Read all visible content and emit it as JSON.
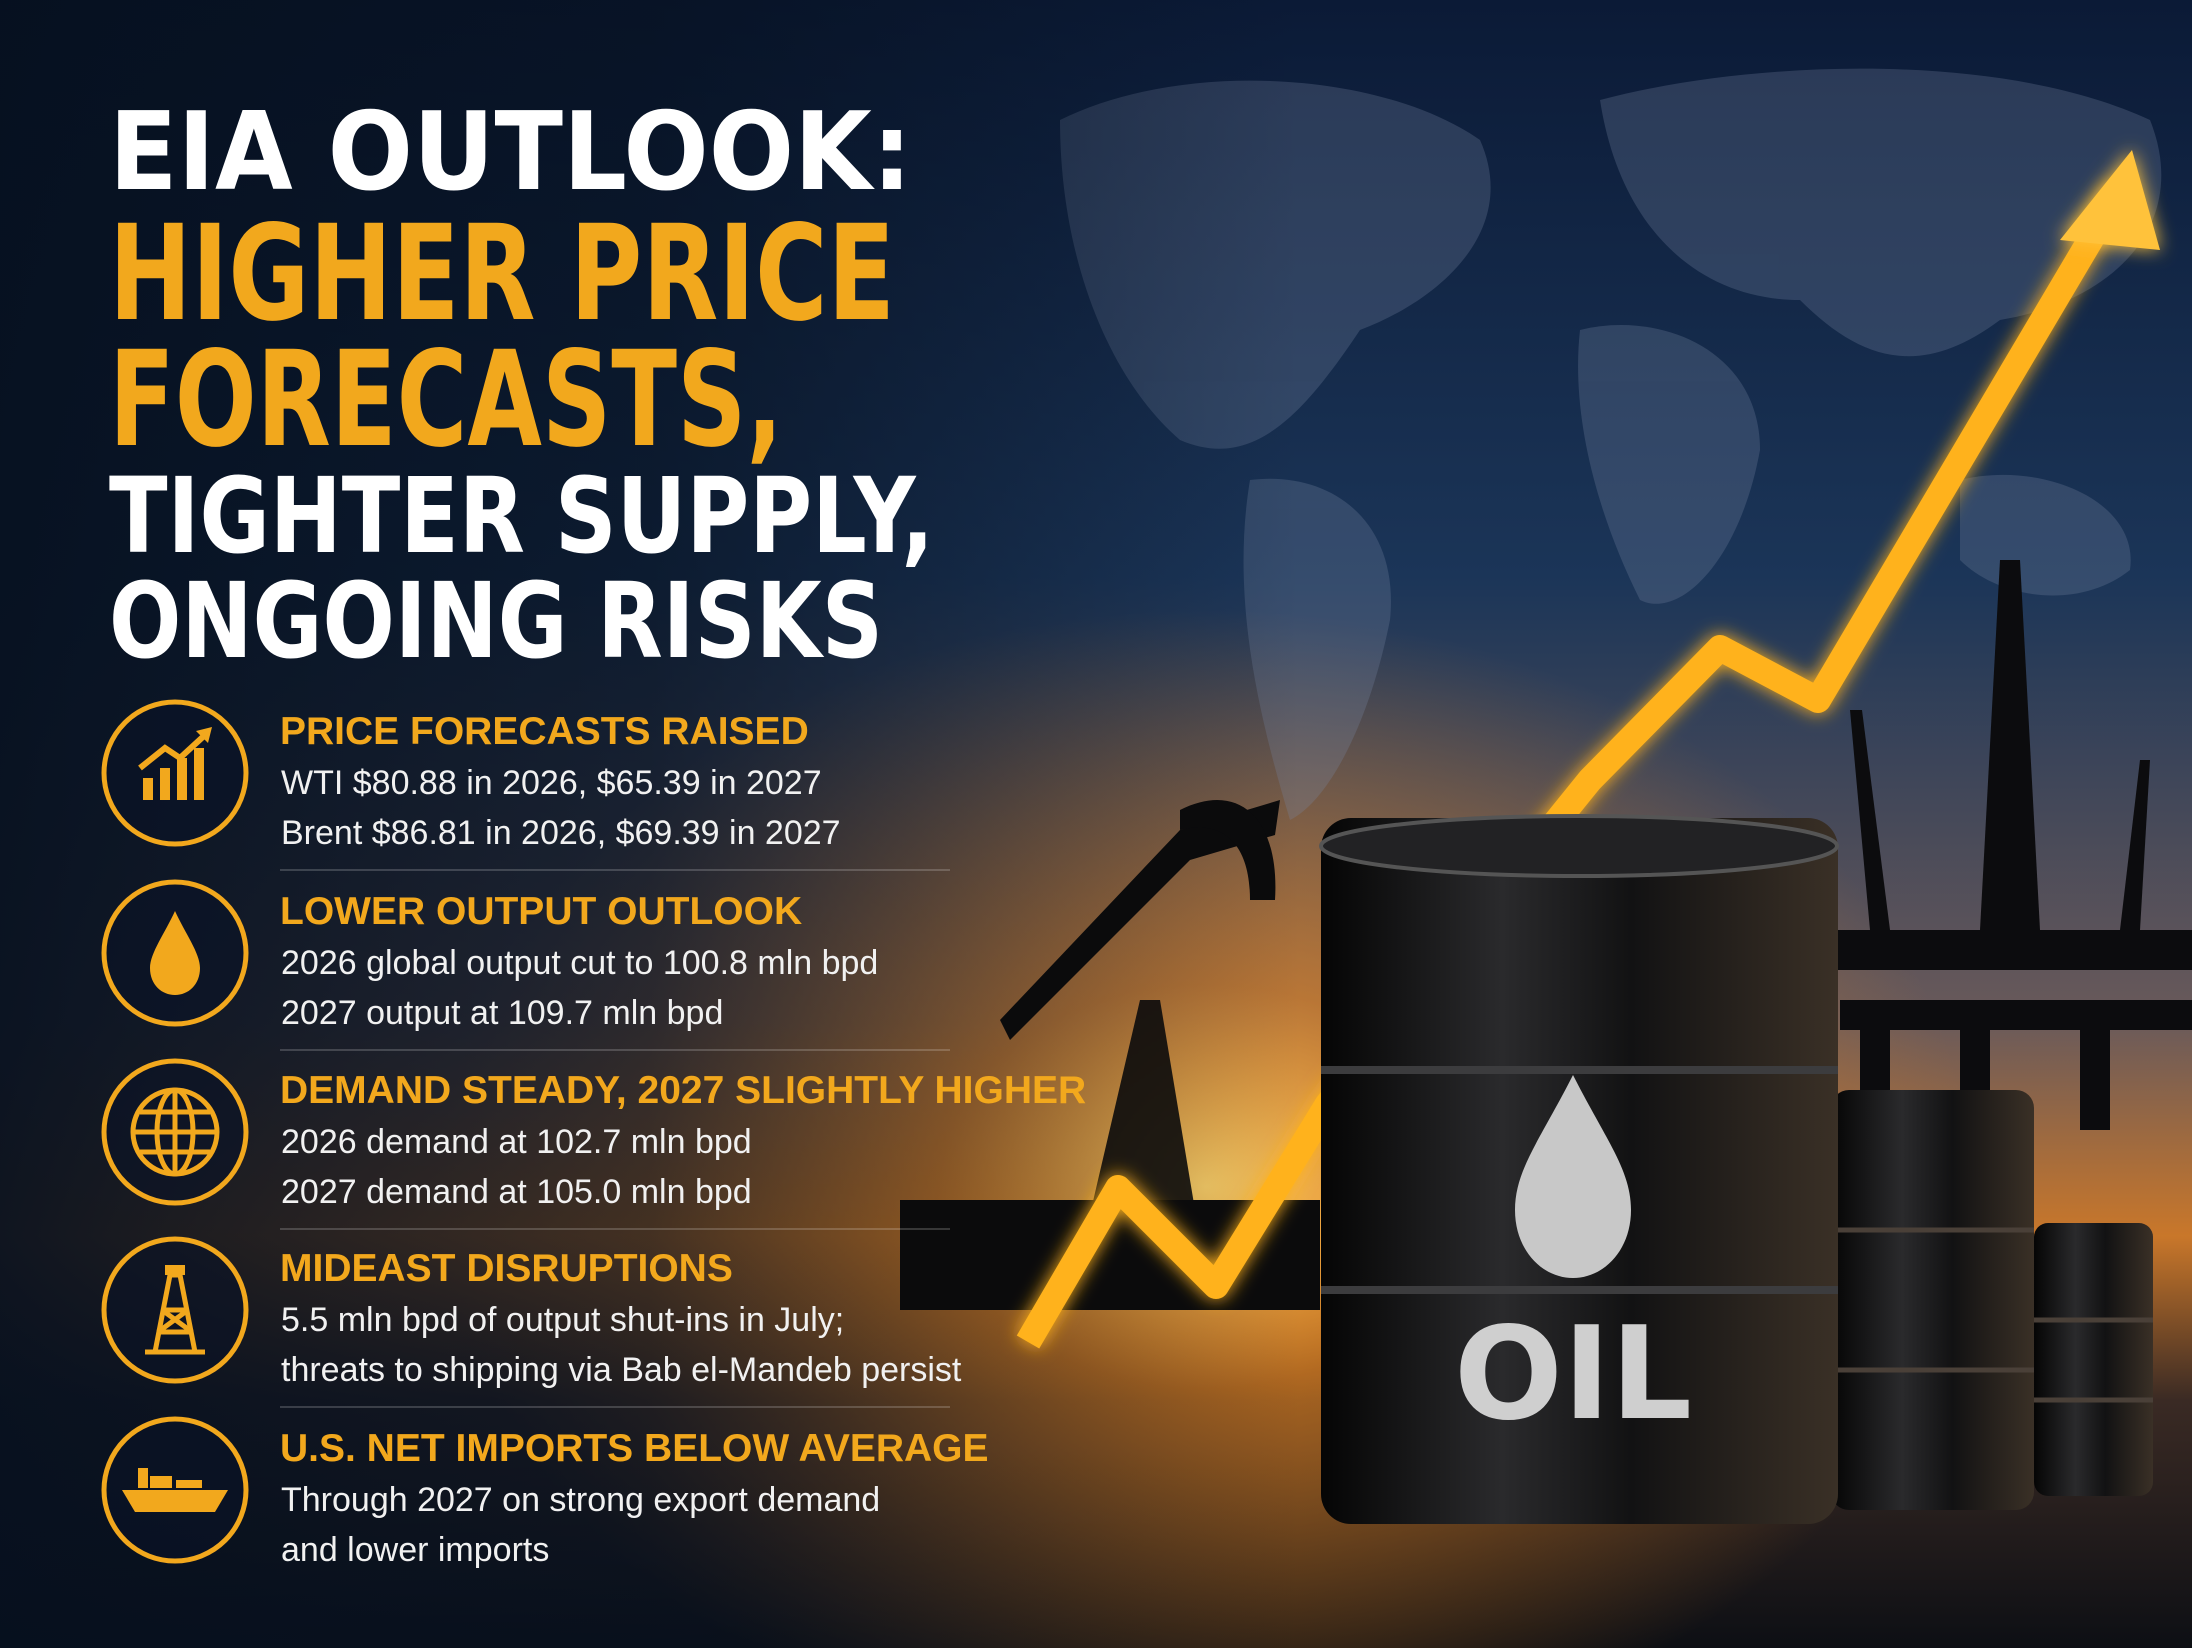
{
  "title": {
    "lines": [
      "EIA OUTLOOK:",
      "HIGHER PRICE",
      "FORECASTS,",
      "TIGHTER SUPPLY,",
      "ONGOING RISKS"
    ]
  },
  "items": [
    {
      "heading": "PRICE FORECASTS RAISED",
      "lines": [
        "WTI $80.88 in 2026, $65.39 in 2027",
        "Brent $86.81 in 2026, $69.39 in 2027"
      ]
    },
    {
      "heading": "LOWER OUTPUT OUTLOOK",
      "lines": [
        "2026 global output cut to 100.8 mln bpd",
        "2027 output at 109.7 mln bpd"
      ]
    },
    {
      "heading": "DEMAND STEADY, 2027 SLIGHTLY HIGHER",
      "lines": [
        "2026 demand at 102.7 mln bpd",
        "2027 demand at 105.0 mln bpd"
      ]
    },
    {
      "heading": "MIDEAST DISRUPTIONS",
      "lines": [
        "5.5 mln bpd of output shut-ins in July;",
        "threats to shipping via Bab el-Mandeb persist"
      ]
    },
    {
      "heading": "U.S. NET IMPORTS BELOW AVERAGE",
      "lines": [
        "Through 2027 on strong export demand",
        "and lower imports"
      ]
    }
  ],
  "barrel_label": "OIL"
}
